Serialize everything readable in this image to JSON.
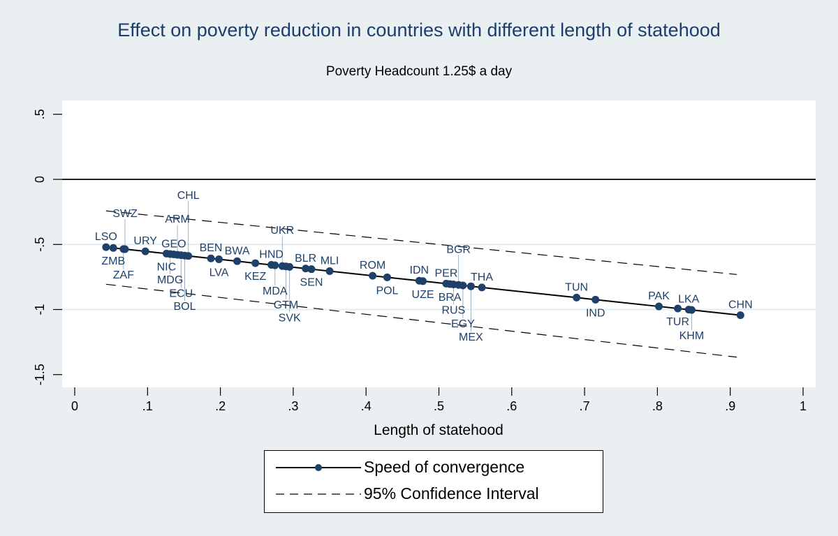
{
  "chart_data": {
    "type": "scatter",
    "title": "Effect on poverty reduction in countries with different length of statehood",
    "subtitle": "Poverty Headcount 1.25$ a day",
    "xlabel": "Length of statehood",
    "ylabel": "",
    "xlim": [
      0,
      1
    ],
    "ylim": [
      -1.5,
      0.5
    ],
    "xticks": [
      "0",
      ".1",
      ".2",
      ".3",
      ".4",
      ".5",
      ".6",
      ".7",
      ".8",
      ".9",
      "1"
    ],
    "yticks": [
      ".5",
      "0",
      "-.5",
      "-1",
      "-1.5"
    ],
    "grid": true,
    "reference_line_y": 0,
    "legend_position": "bottom",
    "series": [
      {
        "name": "Speed of convergence",
        "style": "line-with-markers",
        "color": "#1f4068",
        "fit": {
          "intercept": -0.495,
          "slope": -0.6
        },
        "points": [
          {
            "label": "LSO",
            "x": 0.043
          },
          {
            "label": "ZMB",
            "x": 0.053
          },
          {
            "label": "ZAF",
            "x": 0.067
          },
          {
            "label": "SWZ",
            "x": 0.069
          },
          {
            "label": "URY",
            "x": 0.097
          },
          {
            "label": "NIC",
            "x": 0.126
          },
          {
            "label": "MDG",
            "x": 0.131
          },
          {
            "label": "GEO",
            "x": 0.136
          },
          {
            "label": "ARM",
            "x": 0.141
          },
          {
            "label": "ECU",
            "x": 0.146
          },
          {
            "label": "BOL",
            "x": 0.151
          },
          {
            "label": "CHL",
            "x": 0.156
          },
          {
            "label": "BEN",
            "x": 0.187
          },
          {
            "label": "LVA",
            "x": 0.198
          },
          {
            "label": "BWA",
            "x": 0.223
          },
          {
            "label": "KEZ",
            "x": 0.248
          },
          {
            "label": "HND",
            "x": 0.27
          },
          {
            "label": "MDA",
            "x": 0.275
          },
          {
            "label": "UKR",
            "x": 0.285
          },
          {
            "label": "GTM",
            "x": 0.29
          },
          {
            "label": "SVK",
            "x": 0.295
          },
          {
            "label": "BLR",
            "x": 0.317
          },
          {
            "label": "SEN",
            "x": 0.325
          },
          {
            "label": "MLI",
            "x": 0.35
          },
          {
            "label": "ROM",
            "x": 0.409
          },
          {
            "label": "POL",
            "x": 0.429
          },
          {
            "label": "IDN",
            "x": 0.473
          },
          {
            "label": "UZE",
            "x": 0.478
          },
          {
            "label": "PER",
            "x": 0.51
          },
          {
            "label": "BRA",
            "x": 0.515
          },
          {
            "label": "RUS",
            "x": 0.52
          },
          {
            "label": "BGR",
            "x": 0.527
          },
          {
            "label": "EGY",
            "x": 0.533
          },
          {
            "label": "MEX",
            "x": 0.544
          },
          {
            "label": "THA",
            "x": 0.559
          },
          {
            "label": "TUN",
            "x": 0.689
          },
          {
            "label": "IND",
            "x": 0.715
          },
          {
            "label": "PAK",
            "x": 0.802
          },
          {
            "label": "TUR",
            "x": 0.828
          },
          {
            "label": "LKA",
            "x": 0.843
          },
          {
            "label": "KHM",
            "x": 0.847
          },
          {
            "label": "CHN",
            "x": 0.914
          }
        ]
      },
      {
        "name": "95% Confidence Interval",
        "style": "dashed",
        "upper": [
          {
            "x": 0.043,
            "y": -0.242
          },
          {
            "x": 0.909,
            "y": -0.731
          }
        ],
        "lower": [
          {
            "x": 0.043,
            "y": -0.806
          },
          {
            "x": 0.909,
            "y": -1.366
          }
        ]
      }
    ]
  },
  "legend": {
    "items": [
      "Speed of convergence",
      "95% Confidence Interval"
    ]
  }
}
